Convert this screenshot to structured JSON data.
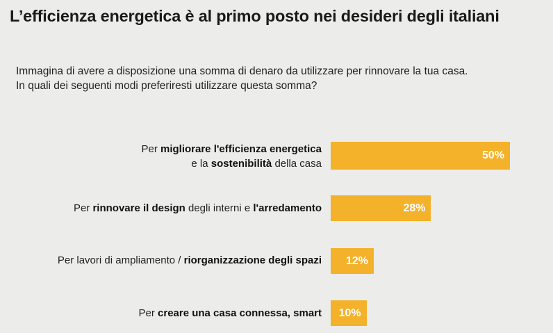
{
  "title": "L’efficienza energetica è al primo posto nei desideri degli italiani",
  "question": {
    "line1": "Immagina di avere a disposizione una somma di denaro da utilizzare per rinnovare la tua casa.",
    "line2": "In quali dei seguenti modi preferiresti utilizzare questa somma?"
  },
  "colors": {
    "bar": "#f4b12a",
    "background": "#ececea"
  },
  "chart_data": {
    "type": "bar",
    "orientation": "horizontal",
    "title": "L’efficienza energetica è al primo posto nei desideri degli italiani",
    "xlim": [
      0,
      100
    ],
    "unit": "%",
    "categories": [
      "Per migliorare l'efficienza energetica e la sostenibilità della casa",
      "Per rinnovare il design degli interni e l'arredamento",
      "Per lavori di ampliamento / riorganizzazione degli spazi",
      "Per creare una casa connessa, smart"
    ],
    "values": [
      50,
      28,
      12,
      10
    ],
    "value_labels": [
      "50%",
      "28%",
      "12%",
      "10%"
    ]
  },
  "labels": [
    {
      "l1a": "Per ",
      "l1b": "migliorare l'efficienza energetica",
      "l2a": "e la ",
      "l2b": "sostenibilità",
      "l2c": " della casa"
    },
    {
      "a": "Per ",
      "b": "rinnovare il design",
      "c": " degli interni e ",
      "d": "l'arredamento"
    },
    {
      "a": "Per lavori di ampliamento / ",
      "b": "riorganizzazione degli spazi"
    },
    {
      "a": "Per ",
      "b": "creare una casa connessa, smart"
    }
  ]
}
